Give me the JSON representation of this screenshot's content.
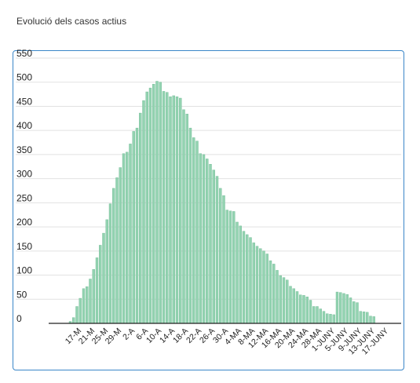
{
  "page": {
    "title": "Evolució dels casos actius"
  },
  "chart_data": {
    "type": "bar",
    "title": "Evolució dels casos actius",
    "xlabel": "",
    "ylabel": "",
    "ylim": [
      0,
      550
    ],
    "yticks": [
      0,
      50,
      100,
      150,
      200,
      250,
      300,
      350,
      400,
      450,
      500,
      550
    ],
    "grid": true,
    "legend": "none",
    "bar_color": "#93d3b1",
    "bar_edge_color": "#6fb993",
    "grid_color": "#e2e2e2",
    "axis_color": "#222222",
    "frame_color": "#3a86c8",
    "tick_labels": [
      "17-M",
      "21-M",
      "25-M",
      "29-M",
      "2-A",
      "6-A",
      "10-A",
      "14-A",
      "18-A",
      "22-A",
      "26-A",
      "30-A",
      "4-MA",
      "8-MA",
      "12-MA",
      "16-MA",
      "20-MA",
      "24-MA",
      "28-MA",
      "1-JUNY",
      "5-JUNY",
      "9-JUNY",
      "13-JUNY",
      "17-JUNY"
    ],
    "values": [
      4,
      12,
      35,
      52,
      72,
      76,
      92,
      112,
      136,
      162,
      187,
      215,
      248,
      280,
      302,
      323,
      352,
      355,
      372,
      398,
      405,
      436,
      462,
      480,
      488,
      496,
      502,
      500,
      481,
      479,
      470,
      472,
      470,
      467,
      443,
      434,
      405,
      385,
      378,
      352,
      350,
      341,
      330,
      318,
      305,
      280,
      265,
      235,
      233,
      232,
      210,
      202,
      191,
      184,
      178,
      167,
      160,
      155,
      150,
      144,
      130,
      123,
      110,
      99,
      95,
      90,
      77,
      72,
      66,
      59,
      58,
      55,
      48,
      35,
      35,
      30,
      25,
      20,
      19,
      18,
      65,
      64,
      62,
      60,
      53,
      45,
      43,
      25,
      24,
      23,
      15,
      14
    ]
  }
}
